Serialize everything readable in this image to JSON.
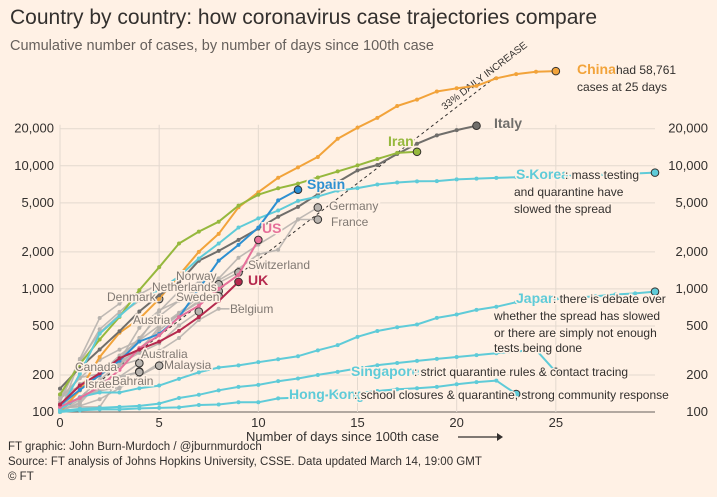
{
  "title": "Country by country: how coronavirus case trajectories compare",
  "subtitle": "Cumulative number of cases, by number of days since 100th case",
  "footer": {
    "credit": "FT graphic: John Burn-Murdoch / @jburnmurdoch",
    "source": "Source: FT analysis of Johns Hopkins University, CSSE. Data updated March 14, 19:00 GMT",
    "copyright": "© FT"
  },
  "chart_data": {
    "type": "line",
    "xlabel": "Number of days since 100th case",
    "ylabel": "",
    "xlim": [
      0,
      30
    ],
    "ylim": [
      100,
      60000
    ],
    "yscale": "log",
    "x_ticks": [
      0,
      5,
      10,
      15,
      20,
      25
    ],
    "y_ticks": [
      100,
      200,
      500,
      1000,
      2000,
      5000,
      10000,
      20000
    ],
    "y_tick_labels": [
      "100",
      "200",
      "500",
      "1,000",
      "2,000",
      "5,000",
      "10,000",
      "20,000"
    ],
    "grid": true,
    "legend": "none",
    "reference_line": {
      "label": "33% DAILY INCREASE",
      "rate": 1.33,
      "x": [
        0,
        22
      ]
    },
    "series": [
      {
        "name": "China",
        "color": "#f2a33a",
        "highlight": true,
        "note": "had 58,761 cases at 25 days",
        "x": [
          0,
          1,
          2,
          3,
          4,
          5,
          6,
          7,
          8,
          9,
          10,
          11,
          12,
          13,
          14,
          15,
          16,
          17,
          18,
          19,
          20,
          21,
          22,
          23,
          24,
          25
        ],
        "y": [
          100,
          150,
          280,
          440,
          570,
          830,
          1290,
          2000,
          2800,
          4600,
          6100,
          8000,
          9700,
          11800,
          16600,
          20400,
          24500,
          30600,
          34500,
          40100,
          42600,
          44600,
          51400,
          55600,
          58000,
          58761
        ]
      },
      {
        "name": "Italy",
        "color": "#706e6b",
        "highlight": true,
        "x": [
          0,
          1,
          2,
          3,
          4,
          5,
          6,
          7,
          8,
          9,
          10,
          11,
          12,
          13,
          14,
          15,
          16,
          17,
          18,
          19,
          20,
          21
        ],
        "y": [
          155,
          229,
          322,
          453,
          655,
          888,
          1128,
          1694,
          2036,
          2502,
          3089,
          3858,
          4636,
          5883,
          7375,
          9172,
          10149,
          12462,
          15113,
          17660,
          19500,
          21157
        ]
      },
      {
        "name": "Iran",
        "color": "#96b83d",
        "highlight": true,
        "x": [
          0,
          1,
          2,
          3,
          4,
          5,
          6,
          7,
          8,
          9,
          10,
          11,
          12,
          13,
          14,
          15,
          16,
          17,
          18
        ],
        "y": [
          139,
          245,
          388,
          593,
          978,
          1501,
          2336,
          2922,
          3513,
          4747,
          5823,
          6566,
          7161,
          8042,
          9000,
          10075,
          11364,
          12729,
          13000
        ]
      },
      {
        "name": "S Korea",
        "color": "#5fcbd8",
        "highlight": true,
        "note": "mass testing and quarantine have slowed the spread",
        "x": [
          0,
          1,
          2,
          3,
          4,
          5,
          6,
          7,
          8,
          9,
          10,
          11,
          12,
          13,
          14,
          15,
          16,
          17,
          18,
          19,
          20,
          21,
          22,
          23,
          24,
          25,
          26,
          27,
          28,
          29,
          30,
          31,
          32
        ],
        "y": [
          104,
          204,
          433,
          602,
          833,
          977,
          1261,
          1766,
          2337,
          3150,
          3736,
          4335,
          5186,
          5621,
          6284,
          6593,
          7041,
          7314,
          7478,
          7513,
          7755,
          7869,
          7979,
          8086,
          8162,
          8236,
          8320,
          8413,
          8565,
          8652,
          8799,
          8897,
          8086
        ]
      },
      {
        "name": "Japan",
        "color": "#5fcbd8",
        "highlight": true,
        "note": "there is debate over whether the spread has slowed or there are simply not enough tests being done",
        "x": [
          0,
          1,
          2,
          3,
          4,
          5,
          6,
          7,
          8,
          9,
          10,
          11,
          12,
          13,
          14,
          15,
          16,
          17,
          18,
          19,
          20,
          21,
          22,
          23,
          24,
          25,
          26,
          27,
          28,
          29,
          30,
          31,
          32
        ],
        "y": [
          105,
          132,
          144,
          144,
          156,
          164,
          186,
          210,
          230,
          239,
          254,
          268,
          284,
          317,
          349,
          408,
          455,
          488,
          514,
          581,
          619,
          675,
          716,
          780,
          814,
          830,
          850,
          870,
          900,
          920,
          950,
          980,
          814
        ]
      },
      {
        "name": "Singapore",
        "color": "#5fcbd8",
        "highlight": true,
        "note": "strict quarantine rules & contact tracing",
        "x": [
          0,
          1,
          2,
          3,
          4,
          5,
          6,
          7,
          8,
          9,
          10,
          11,
          12,
          13,
          14,
          15,
          16,
          17,
          18,
          19,
          20,
          21,
          22,
          23,
          24,
          25
        ],
        "y": [
          102,
          106,
          108,
          110,
          112,
          117,
          130,
          138,
          150,
          160,
          166,
          178,
          187,
          200,
          212,
          226,
          240,
          250,
          260,
          270,
          280,
          290,
          300,
          310,
          320,
          212
        ]
      },
      {
        "name": "Hong Kong",
        "color": "#5fcbd8",
        "highlight": true,
        "note": "school closures & quarantine, strong community response",
        "x": [
          0,
          1,
          2,
          3,
          4,
          5,
          6,
          7,
          8,
          9,
          10,
          11,
          12,
          13,
          14,
          15,
          16,
          17,
          18,
          19,
          20,
          21,
          22,
          23
        ],
        "y": [
          100,
          103,
          105,
          105,
          107,
          108,
          109,
          114,
          115,
          120,
          120,
          129,
          131,
          135,
          138,
          142,
          148,
          153,
          156,
          160,
          168,
          175,
          180,
          140
        ]
      },
      {
        "name": "Spain",
        "color": "#2e90d1",
        "highlight": true,
        "x": [
          0,
          1,
          2,
          3,
          4,
          5,
          6,
          7,
          8,
          9,
          10,
          11,
          12
        ],
        "y": [
          114,
          151,
          200,
          261,
          374,
          430,
          589,
          999,
          1695,
          2277,
          3146,
          5232,
          6391
        ]
      },
      {
        "name": "US",
        "color": "#e6709a",
        "highlight": true,
        "x": [
          0,
          1,
          2,
          3,
          4,
          5,
          6,
          7,
          8,
          9,
          10
        ],
        "y": [
          110,
          130,
          160,
          220,
          330,
          420,
          590,
          730,
          1000,
          1300,
          2500
        ]
      },
      {
        "name": "UK",
        "color": "#b5294e",
        "highlight": true,
        "x": [
          0,
          1,
          2,
          3,
          4,
          5,
          6,
          7,
          8,
          9
        ],
        "y": [
          115,
          164,
          206,
          273,
          321,
          373,
          456,
          590,
          798,
          1140
        ]
      },
      {
        "name": "Germany",
        "color": "#b8b3ae",
        "highlight": false,
        "x": [
          0,
          1,
          2,
          3,
          4,
          5,
          6,
          7,
          8,
          9,
          10,
          11,
          12,
          13
        ],
        "y": [
          130,
          159,
          196,
          262,
          482,
          670,
          799,
          1040,
          1176,
          1457,
          1908,
          2078,
          3675,
          4585
        ]
      },
      {
        "name": "France",
        "color": "#b8b3ae",
        "highlight": false,
        "x": [
          0,
          1,
          2,
          3,
          4,
          5,
          6,
          7,
          8,
          9,
          10,
          11,
          12,
          13
        ],
        "y": [
          130,
          191,
          204,
          288,
          380,
          656,
          957,
          1134,
          1217,
          1792,
          2289,
          2879,
          3661,
          3661
        ]
      },
      {
        "name": "Switzerland",
        "color": "#b8b3ae",
        "highlight": false,
        "x": [
          0,
          1,
          2,
          3,
          4,
          5,
          6,
          7,
          8,
          9
        ],
        "y": [
          100,
          120,
          210,
          260,
          310,
          490,
          640,
          860,
          1120,
          1360
        ]
      },
      {
        "name": "Norway",
        "color": "#b8b3ae",
        "highlight": false,
        "x": [
          0,
          1,
          2,
          3,
          4,
          5,
          6,
          7,
          8
        ],
        "y": [
          110,
          150,
          200,
          270,
          400,
          600,
          800,
          1000,
          1090
        ]
      },
      {
        "name": "Netherlands",
        "color": "#b8b3ae",
        "highlight": false,
        "x": [
          0,
          1,
          2,
          3,
          4,
          5,
          6,
          7,
          8
        ],
        "y": [
          128,
          188,
          265,
          321,
          382,
          503,
          614,
          804,
          959
        ]
      },
      {
        "name": "Sweden",
        "color": "#b8b3ae",
        "highlight": false,
        "x": [
          0,
          1,
          2,
          3,
          4,
          5,
          6,
          7,
          8
        ],
        "y": [
          137,
          161,
          203,
          248,
          326,
          461,
          620,
          775,
          870
        ]
      },
      {
        "name": "Denmark",
        "color": "#b8b3ae",
        "highlight": false,
        "x": [
          0,
          1,
          2,
          3,
          4,
          5
        ],
        "y": [
          100,
          262,
          442,
          615,
          801,
          827
        ]
      },
      {
        "name": "Belgium",
        "color": "#b8b3ae",
        "highlight": false,
        "x": [
          0,
          1,
          2,
          3,
          4,
          5,
          6,
          7,
          8,
          9
        ],
        "y": [
          109,
          169,
          200,
          239,
          267,
          314,
          399,
          559,
          689,
          689
        ]
      },
      {
        "name": "Austria",
        "color": "#b8b3ae",
        "highlight": false,
        "x": [
          0,
          1,
          2,
          3,
          4,
          5,
          6,
          7
        ],
        "y": [
          104,
          131,
          182,
          246,
          302,
          361,
          504,
          655
        ]
      },
      {
        "name": "Australia",
        "color": "#b8b3ae",
        "highlight": false,
        "x": [
          0,
          1,
          2,
          3,
          4,
          5,
          6
        ],
        "y": [
          107,
          112,
          127,
          156,
          197,
          249,
          298
        ]
      },
      {
        "name": "Malaysia",
        "color": "#b8b3ae",
        "highlight": false,
        "x": [
          0,
          1,
          2,
          3,
          4,
          5
        ],
        "y": [
          117,
          129,
          149,
          158,
          197,
          238
        ]
      },
      {
        "name": "Canada",
        "color": "#b8b3ae",
        "highlight": false,
        "x": [
          0,
          1,
          2,
          3,
          4
        ],
        "y": [
          103,
          117,
          176,
          193,
          249
        ]
      },
      {
        "name": "Israel",
        "color": "#b8b3ae",
        "highlight": false,
        "x": [
          0,
          1,
          2,
          3,
          4
        ],
        "y": [
          100,
          126,
          155,
          193,
          213
        ]
      },
      {
        "name": "Bahrain",
        "color": "#b8b3ae",
        "highlight": false,
        "x": [
          0,
          1,
          2,
          3,
          4
        ],
        "y": [
          109,
          110,
          110,
          189,
          211
        ]
      },
      {
        "name": "",
        "color": "#b8b3ae",
        "highlight": false,
        "x": [
          0,
          1,
          2,
          3,
          4,
          5
        ],
        "y": [
          130,
          250,
          470,
          650,
          900,
          1100
        ]
      },
      {
        "name": "",
        "color": "#b8b3ae",
        "highlight": false,
        "x": [
          0,
          1,
          2,
          3,
          4
        ],
        "y": [
          120,
          270,
          580,
          760,
          950
        ]
      }
    ]
  }
}
